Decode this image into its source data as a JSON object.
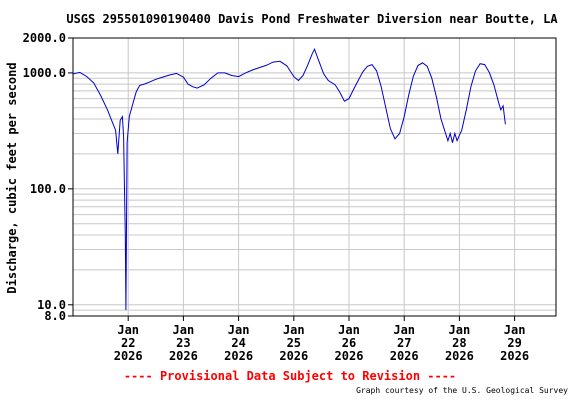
{
  "chart_data": {
    "type": "line",
    "title": "USGS 295501090190400 Davis Pond Freshwater Diversion near Boutte, LA",
    "ylabel": "Discharge, cubic feet per second",
    "xlabel": "",
    "y_scale": "log",
    "ylim": [
      8.0,
      2000.0
    ],
    "y_tick_labels": [
      {
        "value": 2000.0,
        "label": "2000.0"
      },
      {
        "value": 1000.0,
        "label": "1000.0"
      },
      {
        "value": 100.0,
        "label": "100.0"
      },
      {
        "value": 10.0,
        "label": "10.0"
      },
      {
        "value": 8.0,
        "label": "8.0"
      }
    ],
    "xlim": [
      "2026-01-21",
      "2026-01-29T18:00"
    ],
    "x_ticks": [
      {
        "date": "2026-01-22",
        "month": "Jan",
        "day": "22",
        "year": "2026"
      },
      {
        "date": "2026-01-23",
        "month": "Jan",
        "day": "23",
        "year": "2026"
      },
      {
        "date": "2026-01-24",
        "month": "Jan",
        "day": "24",
        "year": "2026"
      },
      {
        "date": "2026-01-25",
        "month": "Jan",
        "day": "25",
        "year": "2026"
      },
      {
        "date": "2026-01-26",
        "month": "Jan",
        "day": "26",
        "year": "2026"
      },
      {
        "date": "2026-01-27",
        "month": "Jan",
        "day": "27",
        "year": "2026"
      },
      {
        "date": "2026-01-28",
        "month": "Jan",
        "day": "28",
        "year": "2026"
      },
      {
        "date": "2026-01-29",
        "month": "Jan",
        "day": "29",
        "year": "2026"
      }
    ],
    "grid": true,
    "line_color": "#0000cc",
    "series": [
      {
        "points": [
          [
            "2026-01-21T00:00",
            980
          ],
          [
            "2026-01-21T03:00",
            1010
          ],
          [
            "2026-01-21T06:00",
            930
          ],
          [
            "2026-01-21T09:00",
            820
          ],
          [
            "2026-01-21T12:00",
            640
          ],
          [
            "2026-01-21T15:00",
            480
          ],
          [
            "2026-01-21T17:00",
            380
          ],
          [
            "2026-01-21T18:30",
            320
          ],
          [
            "2026-01-21T19:30",
            200
          ],
          [
            "2026-01-21T20:30",
            390
          ],
          [
            "2026-01-21T21:30",
            420
          ],
          [
            "2026-01-21T22:00",
            280
          ],
          [
            "2026-01-21T22:45",
            40
          ],
          [
            "2026-01-21T23:00",
            9
          ],
          [
            "2026-01-21T23:30",
            250
          ],
          [
            "2026-01-22T00:30",
            420
          ],
          [
            "2026-01-22T02:00",
            540
          ],
          [
            "2026-01-22T03:30",
            690
          ],
          [
            "2026-01-22T05:00",
            780
          ],
          [
            "2026-01-22T07:00",
            800
          ],
          [
            "2026-01-22T09:00",
            830
          ],
          [
            "2026-01-22T12:00",
            880
          ],
          [
            "2026-01-22T15:00",
            920
          ],
          [
            "2026-01-22T18:00",
            960
          ],
          [
            "2026-01-22T21:00",
            990
          ],
          [
            "2026-01-23T00:00",
            920
          ],
          [
            "2026-01-23T02:00",
            800
          ],
          [
            "2026-01-23T04:00",
            760
          ],
          [
            "2026-01-23T06:00",
            740
          ],
          [
            "2026-01-23T09:00",
            790
          ],
          [
            "2026-01-23T12:00",
            900
          ],
          [
            "2026-01-23T15:00",
            1000
          ],
          [
            "2026-01-23T18:00",
            1000
          ],
          [
            "2026-01-23T21:00",
            950
          ],
          [
            "2026-01-24T00:00",
            930
          ],
          [
            "2026-01-24T03:00",
            1000
          ],
          [
            "2026-01-24T06:00",
            1060
          ],
          [
            "2026-01-24T09:00",
            1110
          ],
          [
            "2026-01-24T12:00",
            1160
          ],
          [
            "2026-01-24T15:00",
            1240
          ],
          [
            "2026-01-24T18:00",
            1260
          ],
          [
            "2026-01-24T21:00",
            1150
          ],
          [
            "2026-01-25T00:00",
            930
          ],
          [
            "2026-01-25T02:00",
            860
          ],
          [
            "2026-01-25T04:00",
            950
          ],
          [
            "2026-01-25T06:00",
            1160
          ],
          [
            "2026-01-25T08:00",
            1460
          ],
          [
            "2026-01-25T09:00",
            1600
          ],
          [
            "2026-01-25T11:00",
            1250
          ],
          [
            "2026-01-25T13:00",
            980
          ],
          [
            "2026-01-25T15:00",
            860
          ],
          [
            "2026-01-25T18:00",
            790
          ],
          [
            "2026-01-25T20:00",
            680
          ],
          [
            "2026-01-25T22:00",
            570
          ],
          [
            "2026-01-26T00:00",
            600
          ],
          [
            "2026-01-26T02:00",
            720
          ],
          [
            "2026-01-26T04:00",
            860
          ],
          [
            "2026-01-26T06:00",
            1020
          ],
          [
            "2026-01-26T08:00",
            1140
          ],
          [
            "2026-01-26T10:00",
            1180
          ],
          [
            "2026-01-26T12:00",
            1040
          ],
          [
            "2026-01-26T14:00",
            760
          ],
          [
            "2026-01-26T16:00",
            500
          ],
          [
            "2026-01-26T18:00",
            330
          ],
          [
            "2026-01-26T20:00",
            270
          ],
          [
            "2026-01-26T22:00",
            300
          ],
          [
            "2026-01-27T00:00",
            420
          ],
          [
            "2026-01-27T02:00",
            650
          ],
          [
            "2026-01-27T04:00",
            940
          ],
          [
            "2026-01-27T06:00",
            1160
          ],
          [
            "2026-01-27T08:00",
            1220
          ],
          [
            "2026-01-27T10:00",
            1140
          ],
          [
            "2026-01-27T12:00",
            900
          ],
          [
            "2026-01-27T14:00",
            620
          ],
          [
            "2026-01-27T16:00",
            400
          ],
          [
            "2026-01-27T18:00",
            300
          ],
          [
            "2026-01-27T19:00",
            260
          ],
          [
            "2026-01-27T20:00",
            300
          ],
          [
            "2026-01-27T21:00",
            250
          ],
          [
            "2026-01-27T22:00",
            300
          ],
          [
            "2026-01-27T23:00",
            260
          ],
          [
            "2026-01-28T00:00",
            290
          ],
          [
            "2026-01-28T01:00",
            320
          ],
          [
            "2026-01-28T03:00",
            480
          ],
          [
            "2026-01-28T05:00",
            760
          ],
          [
            "2026-01-28T07:00",
            1040
          ],
          [
            "2026-01-28T09:00",
            1200
          ],
          [
            "2026-01-28T11:00",
            1180
          ],
          [
            "2026-01-28T13:00",
            1010
          ],
          [
            "2026-01-28T15:00",
            790
          ],
          [
            "2026-01-28T17:00",
            560
          ],
          [
            "2026-01-28T18:00",
            480
          ],
          [
            "2026-01-28T19:00",
            520
          ],
          [
            "2026-01-28T20:00",
            360
          ]
        ]
      }
    ]
  },
  "footer": {
    "provisional_notice": "---- Provisional Data Subject to Revision ----",
    "credit": "Graph courtesy of the U.S. Geological Survey"
  }
}
